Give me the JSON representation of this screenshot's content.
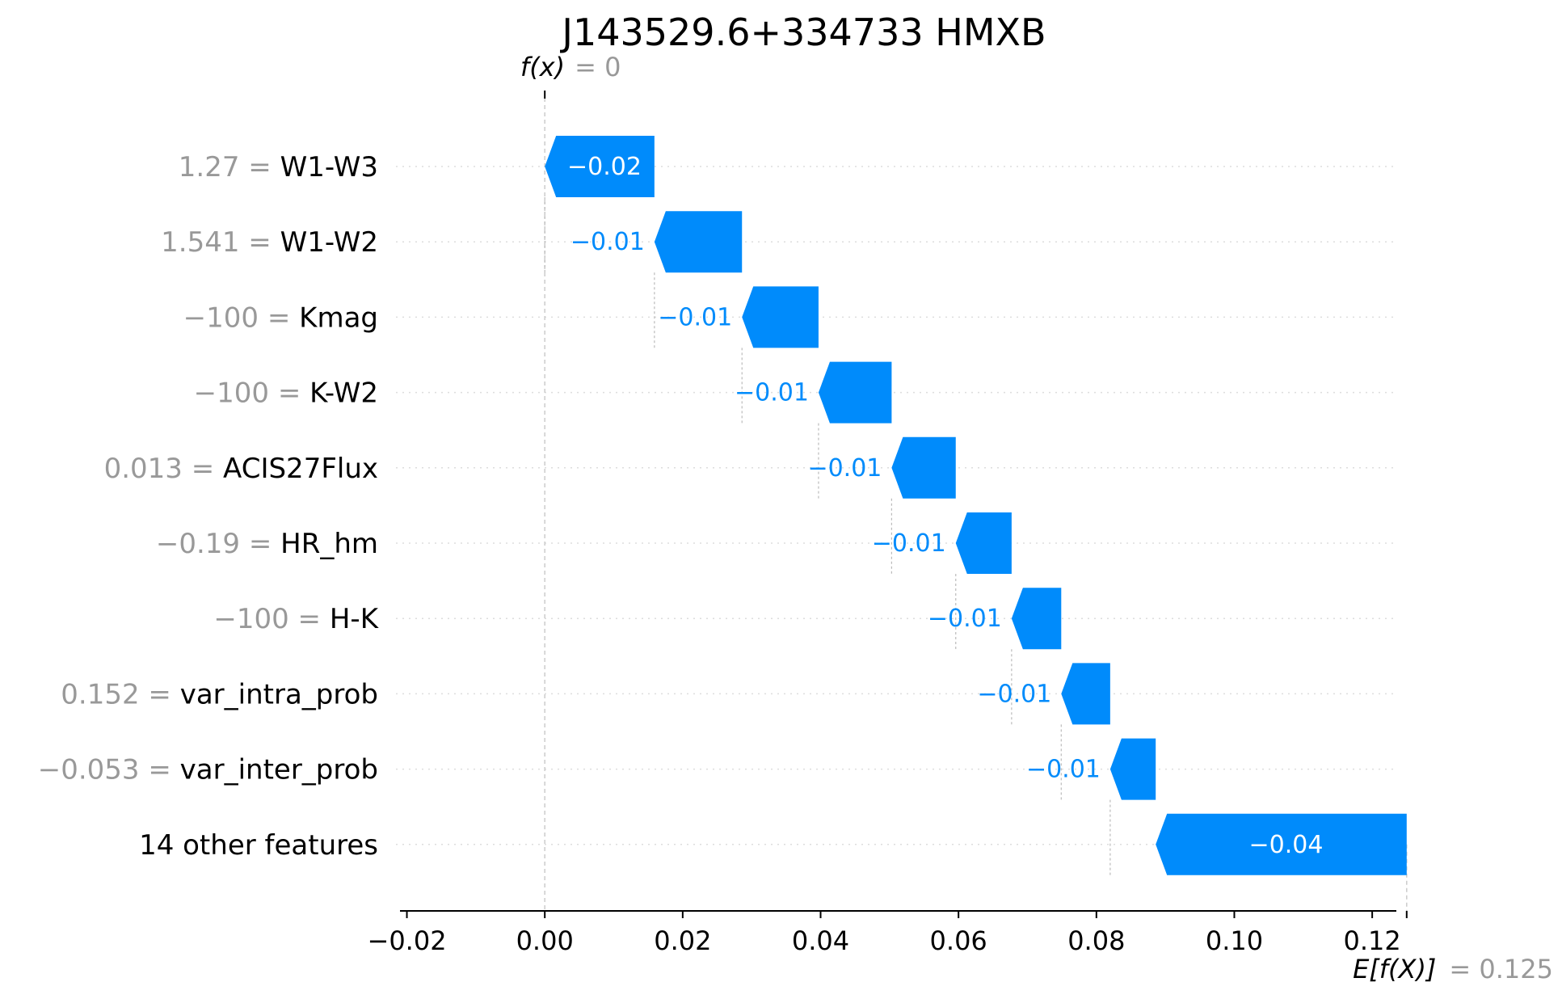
{
  "chart_data": {
    "type": "bar",
    "subtype": "waterfall",
    "title": "J143529.6+334733 HMXB",
    "xlim": [
      -0.021,
      0.1235
    ],
    "xticks": [
      -0.02,
      0.0,
      0.02,
      0.04,
      0.06,
      0.08,
      0.1,
      0.12
    ],
    "xtick_labels": [
      "−0.02",
      "0.00",
      "0.02",
      "0.04",
      "0.06",
      "0.08",
      "0.10",
      "0.12"
    ],
    "base_value": 0.125,
    "output_value": 0,
    "fx_label": "f(x)",
    "fx_value_label": "= 0",
    "efx_label": "E[f(X)]",
    "efx_value_label": "= 0.125",
    "colors": {
      "negative": "#008bfb",
      "grid": "#cccccc",
      "text_muted": "#999999"
    },
    "rows": [
      {
        "feature": "W1-W3",
        "feature_value": "1.27 =",
        "start": 0.0159,
        "end": 0.0,
        "label": "−0.02"
      },
      {
        "feature": "W1-W2",
        "feature_value": "1.541 =",
        "start": 0.0286,
        "end": 0.0159,
        "label": "−0.01"
      },
      {
        "feature": "Kmag",
        "feature_value": "−100 =",
        "start": 0.0397,
        "end": 0.0286,
        "label": "−0.01"
      },
      {
        "feature": "K-W2",
        "feature_value": "−100 =",
        "start": 0.0503,
        "end": 0.0397,
        "label": "−0.01"
      },
      {
        "feature": "ACIS27Flux",
        "feature_value": "0.013 =",
        "start": 0.0596,
        "end": 0.0503,
        "label": "−0.01"
      },
      {
        "feature": "HR_hm",
        "feature_value": "−0.19 =",
        "start": 0.0677,
        "end": 0.0596,
        "label": "−0.01"
      },
      {
        "feature": "H-K",
        "feature_value": "−100 =",
        "start": 0.0749,
        "end": 0.0677,
        "label": "−0.01"
      },
      {
        "feature": "var_intra_prob",
        "feature_value": "0.152 =",
        "start": 0.082,
        "end": 0.0749,
        "label": "−0.01"
      },
      {
        "feature": "var_inter_prob",
        "feature_value": "−0.053 =",
        "start": 0.0886,
        "end": 0.082,
        "label": "−0.01"
      },
      {
        "feature": "14 other features",
        "feature_value": "",
        "start": 0.125,
        "end": 0.0886,
        "label": "−0.04"
      }
    ]
  }
}
